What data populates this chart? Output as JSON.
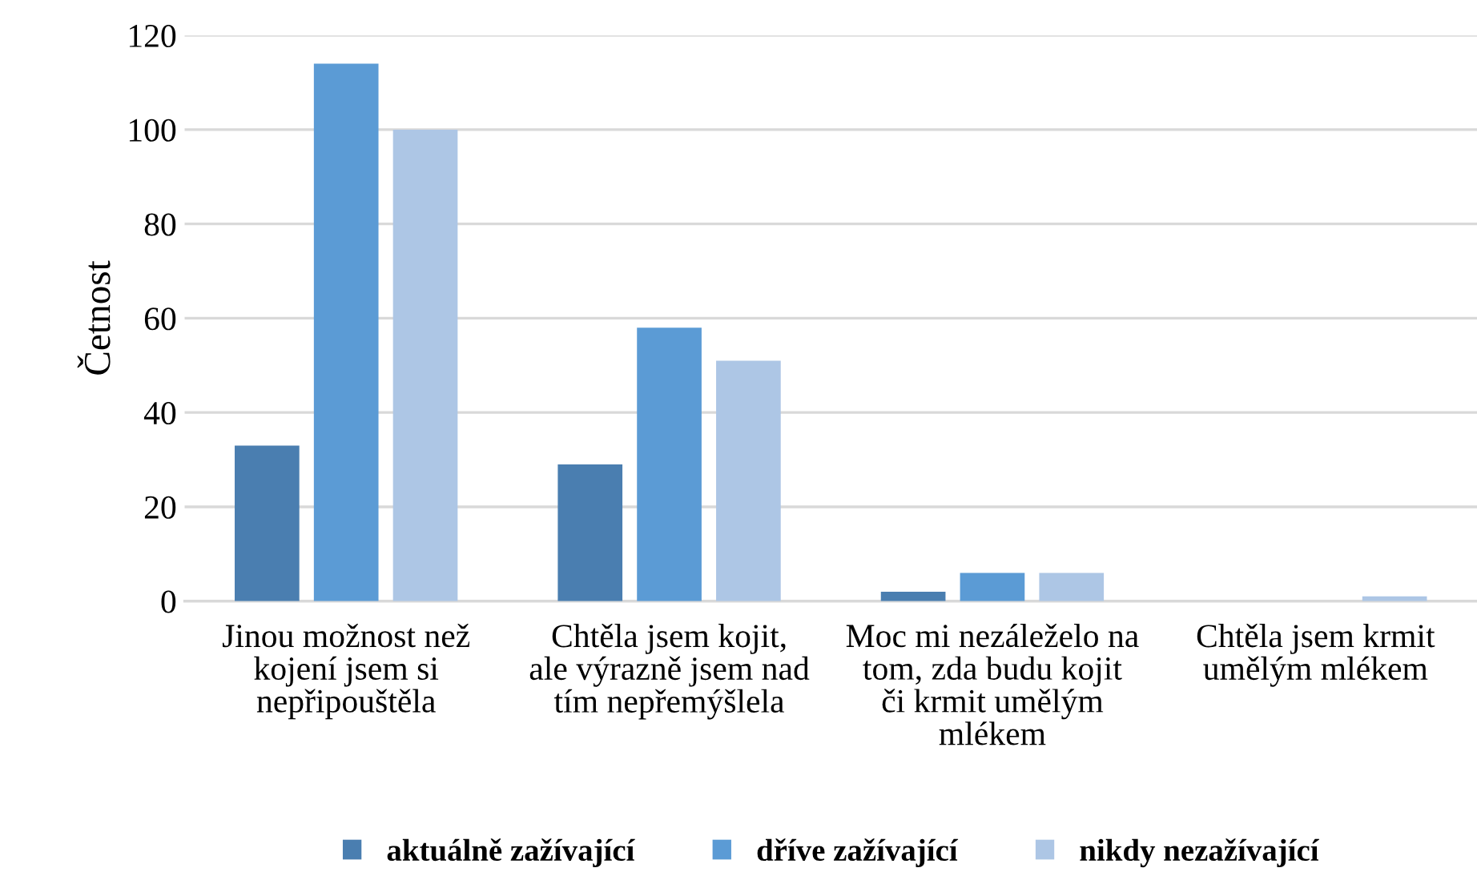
{
  "chart_data": {
    "type": "bar",
    "ylabel": "Četnost",
    "categories": [
      "Jinou možnost než kojení jsem si nepřipouštěla",
      "Chtěla jsem kojit, ale výrazně jsem nad tím nepřemýšlela",
      "Moc mi nezáleželo na tom, zda budu kojit či krmit umělým mlékem",
      "Chtěla jsem krmit umělým mlékem"
    ],
    "series": [
      {
        "name": "aktuálně zažívající",
        "color": "#4a7eb0",
        "values": [
          33,
          29,
          2,
          0
        ]
      },
      {
        "name": "dříve zažívající",
        "color": "#5b9bd5",
        "values": [
          114,
          58,
          6,
          0
        ]
      },
      {
        "name": "nikdy nezažívající",
        "color": "#adc6e5",
        "values": [
          100,
          51,
          6,
          1
        ]
      }
    ],
    "ylim": [
      0,
      120
    ],
    "yticks": [
      0,
      20,
      40,
      60,
      80,
      100,
      120
    ],
    "grid": "y",
    "legend": "bottom"
  }
}
